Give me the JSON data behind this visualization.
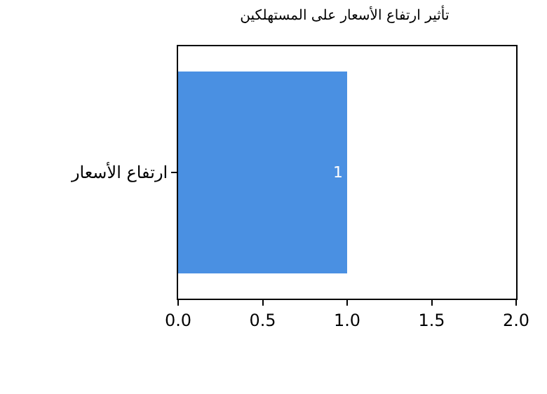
{
  "chart_data": {
    "type": "bar",
    "orientation": "horizontal",
    "title": "تأثير ارتفاع الأسعار على المستهلكين",
    "categories": [
      "ارتفاع الأسعار"
    ],
    "values": [
      1
    ],
    "color": "#4a90e2",
    "data_labels": true,
    "xlim": [
      0,
      2
    ],
    "xticks": [
      {
        "value": 0,
        "label": "0.0"
      },
      {
        "value": 0.5,
        "label": "0.5"
      },
      {
        "value": 1,
        "label": "1.0"
      },
      {
        "value": 1.5,
        "label": "1.5"
      },
      {
        "value": 2,
        "label": "2.0"
      }
    ]
  }
}
